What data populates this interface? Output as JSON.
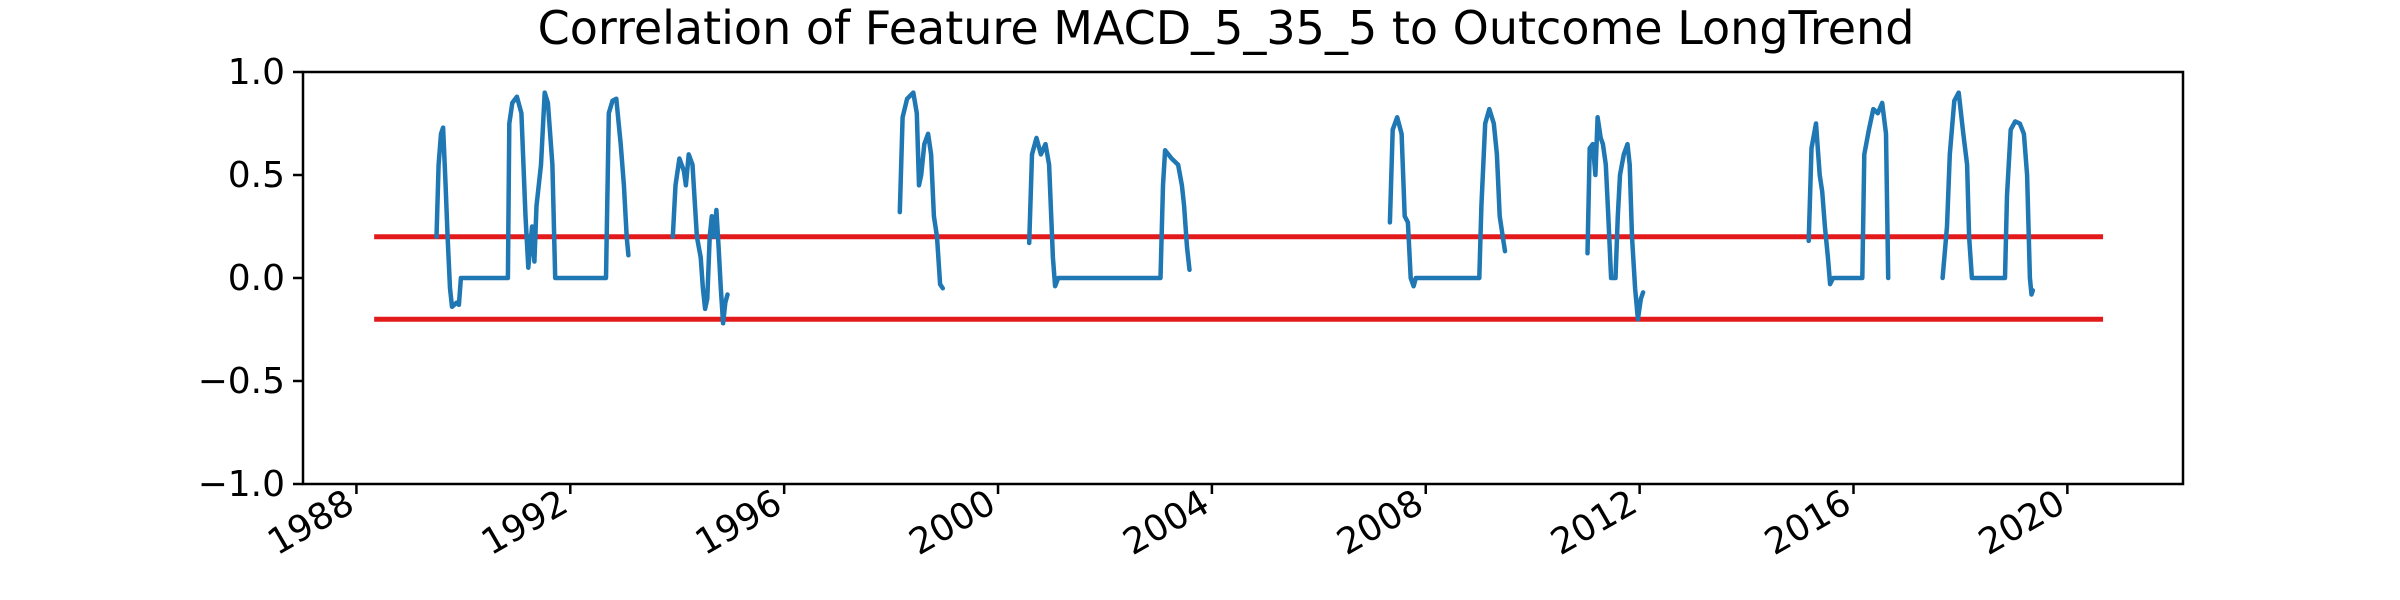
{
  "chart_data": {
    "type": "line",
    "title": "Correlation of Feature MACD_5_35_5 to Outcome LongTrend",
    "xlabel": "",
    "ylabel": "",
    "ylim": [
      -1.0,
      1.0
    ],
    "xlim": [
      "1987-01-01",
      "2022-03-01"
    ],
    "grid": false,
    "colors": {
      "series": "#1f77b4",
      "threshold": "#e31a1c"
    },
    "y_ticks": [
      {
        "value": 1.0,
        "label": "1.0"
      },
      {
        "value": 0.5,
        "label": "0.5"
      },
      {
        "value": 0.0,
        "label": "0.0"
      },
      {
        "value": -0.5,
        "label": "−0.5"
      },
      {
        "value": -1.0,
        "label": "−1.0"
      }
    ],
    "x_ticks": [
      {
        "value": "1988-01-01",
        "label": "1988"
      },
      {
        "value": "1992-01-01",
        "label": "1992"
      },
      {
        "value": "1996-01-01",
        "label": "1996"
      },
      {
        "value": "2000-01-01",
        "label": "2000"
      },
      {
        "value": "2004-01-01",
        "label": "2004"
      },
      {
        "value": "2008-01-01",
        "label": "2008"
      },
      {
        "value": "2012-01-01",
        "label": "2012"
      },
      {
        "value": "2016-01-01",
        "label": "2016"
      },
      {
        "value": "2020-01-01",
        "label": "2020"
      }
    ],
    "threshold_lines": [
      {
        "y": 0.2,
        "x": [
          "1988-05-01",
          "2020-09-01"
        ]
      },
      {
        "y": -0.2,
        "x": [
          "1988-05-01",
          "2020-09-01"
        ]
      }
    ],
    "series": [
      {
        "segments": [
          [
            [
              "1989-07-01",
              0.2
            ],
            [
              "1989-07-15",
              0.55
            ],
            [
              "1989-08-01",
              0.7
            ],
            [
              "1989-08-15",
              0.73
            ],
            [
              "1989-09-01",
              0.45
            ],
            [
              "1989-09-15",
              0.2
            ],
            [
              "1989-10-01",
              -0.05
            ],
            [
              "1989-10-15",
              -0.14
            ],
            [
              "1989-11-15",
              -0.12
            ],
            [
              "1989-12-01",
              -0.13
            ],
            [
              "1989-12-15",
              0.0
            ],
            [
              "1990-11-01",
              0.0
            ],
            [
              "1990-11-10",
              0.75
            ],
            [
              "1990-12-01",
              0.85
            ],
            [
              "1991-01-01",
              0.88
            ],
            [
              "1991-02-01",
              0.8
            ],
            [
              "1991-03-01",
              0.3
            ],
            [
              "1991-03-20",
              0.05
            ],
            [
              "1991-04-15",
              0.25
            ],
            [
              "1991-05-01",
              0.08
            ],
            [
              "1991-05-15",
              0.35
            ],
            [
              "1991-06-15",
              0.55
            ],
            [
              "1991-07-10",
              0.9
            ],
            [
              "1991-08-01",
              0.85
            ],
            [
              "1991-09-01",
              0.55
            ],
            [
              "1991-09-20",
              0.0
            ],
            [
              "1992-09-01",
              0.0
            ],
            [
              "1992-09-20",
              0.8
            ],
            [
              "1992-10-15",
              0.86
            ],
            [
              "1992-11-10",
              0.87
            ],
            [
              "1992-12-10",
              0.65
            ],
            [
              "1993-01-01",
              0.45
            ],
            [
              "1993-01-20",
              0.2
            ],
            [
              "1993-02-01",
              0.11
            ]
          ],
          [
            [
              "1993-12-01",
              0.2
            ],
            [
              "1993-12-20",
              0.45
            ],
            [
              "1994-01-15",
              0.58
            ],
            [
              "1994-02-15",
              0.52
            ],
            [
              "1994-03-01",
              0.45
            ],
            [
              "1994-03-20",
              0.6
            ],
            [
              "1994-04-15",
              0.55
            ],
            [
              "1994-05-15",
              0.2
            ],
            [
              "1994-06-10",
              0.1
            ],
            [
              "1994-06-25",
              -0.05
            ],
            [
              "1994-07-10",
              -0.15
            ],
            [
              "1994-07-25",
              -0.1
            ],
            [
              "1994-08-10",
              0.2
            ],
            [
              "1994-08-25",
              0.3
            ],
            [
              "1994-09-10",
              0.2
            ],
            [
              "1994-09-25",
              0.33
            ],
            [
              "1994-10-10",
              0.15
            ],
            [
              "1994-10-25",
              -0.05
            ],
            [
              "1994-11-10",
              -0.22
            ],
            [
              "1994-11-25",
              -0.12
            ],
            [
              "1994-12-10",
              -0.08
            ]
          ],
          [
            [
              "1998-03-01",
              0.32
            ],
            [
              "1998-03-20",
              0.78
            ],
            [
              "1998-04-20",
              0.87
            ],
            [
              "1998-06-01",
              0.9
            ],
            [
              "1998-06-25",
              0.8
            ],
            [
              "1998-07-10",
              0.45
            ],
            [
              "1998-07-25",
              0.5
            ],
            [
              "1998-08-15",
              0.65
            ],
            [
              "1998-09-10",
              0.7
            ],
            [
              "1998-10-01",
              0.6
            ],
            [
              "1998-10-20",
              0.3
            ],
            [
              "1998-11-10",
              0.2
            ],
            [
              "1998-12-01",
              -0.03
            ],
            [
              "1998-12-20",
              -0.05
            ]
          ],
          [
            [
              "2000-08-01",
              0.17
            ],
            [
              "2000-08-20",
              0.6
            ],
            [
              "2000-09-20",
              0.68
            ],
            [
              "2000-10-20",
              0.6
            ],
            [
              "2000-11-20",
              0.65
            ],
            [
              "2000-12-15",
              0.55
            ],
            [
              "2001-01-10",
              0.1
            ],
            [
              "2001-01-25",
              -0.04
            ],
            [
              "2001-02-15",
              0.0
            ],
            [
              "2003-01-15",
              0.0
            ],
            [
              "2003-02-01",
              0.45
            ],
            [
              "2003-02-15",
              0.62
            ],
            [
              "2003-04-01",
              0.58
            ],
            [
              "2003-05-15",
              0.55
            ],
            [
              "2003-06-10",
              0.45
            ],
            [
              "2003-06-25",
              0.35
            ],
            [
              "2003-07-15",
              0.15
            ],
            [
              "2003-08-01",
              0.04
            ]
          ],
          [
            [
              "2007-05-01",
              0.27
            ],
            [
              "2007-05-20",
              0.72
            ],
            [
              "2007-06-20",
              0.78
            ],
            [
              "2007-07-20",
              0.7
            ],
            [
              "2007-08-10",
              0.3
            ],
            [
              "2007-09-01",
              0.27
            ],
            [
              "2007-09-20",
              0.0
            ],
            [
              "2007-10-10",
              -0.04
            ],
            [
              "2007-10-25",
              0.0
            ],
            [
              "2009-01-01",
              0.0
            ],
            [
              "2009-01-15",
              0.35
            ],
            [
              "2009-02-10",
              0.75
            ],
            [
              "2009-03-10",
              0.82
            ],
            [
              "2009-04-10",
              0.75
            ],
            [
              "2009-05-01",
              0.6
            ],
            [
              "2009-05-20",
              0.3
            ],
            [
              "2009-06-10",
              0.2
            ],
            [
              "2009-06-25",
              0.13
            ]
          ],
          [
            [
              "2011-01-10",
              0.12
            ],
            [
              "2011-01-25",
              0.63
            ],
            [
              "2011-02-15",
              0.65
            ],
            [
              "2011-03-05",
              0.5
            ],
            [
              "2011-03-20",
              0.78
            ],
            [
              "2011-04-10",
              0.68
            ],
            [
              "2011-04-25",
              0.65
            ],
            [
              "2011-05-15",
              0.55
            ],
            [
              "2011-06-01",
              0.3
            ],
            [
              "2011-06-20",
              0.0
            ],
            [
              "2011-07-20",
              0.0
            ],
            [
              "2011-08-05",
              0.3
            ],
            [
              "2011-08-20",
              0.5
            ],
            [
              "2011-09-15",
              0.6
            ],
            [
              "2011-10-10",
              0.65
            ],
            [
              "2011-10-25",
              0.55
            ],
            [
              "2011-11-10",
              0.2
            ],
            [
              "2011-12-01",
              -0.05
            ],
            [
              "2011-12-20",
              -0.2
            ],
            [
              "2012-01-10",
              -0.1
            ],
            [
              "2012-01-25",
              -0.07
            ]
          ],
          [
            [
              "2015-03-01",
              0.18
            ],
            [
              "2015-03-20",
              0.63
            ],
            [
              "2015-04-20",
              0.75
            ],
            [
              "2015-05-15",
              0.5
            ],
            [
              "2015-06-01",
              0.42
            ],
            [
              "2015-06-20",
              0.25
            ],
            [
              "2015-07-10",
              0.1
            ],
            [
              "2015-07-25",
              -0.03
            ],
            [
              "2015-08-15",
              0.0
            ],
            [
              "2016-03-01",
              0.0
            ],
            [
              "2016-03-15",
              0.6
            ],
            [
              "2016-04-15",
              0.72
            ],
            [
              "2016-05-15",
              0.82
            ],
            [
              "2016-06-15",
              0.8
            ],
            [
              "2016-07-15",
              0.85
            ],
            [
              "2016-08-10",
              0.7
            ],
            [
              "2016-08-25",
              0.0
            ]
          ],
          [
            [
              "2017-09-01",
              0.0
            ],
            [
              "2017-10-01",
              0.25
            ],
            [
              "2017-10-20",
              0.6
            ],
            [
              "2017-11-20",
              0.86
            ],
            [
              "2017-12-20",
              0.9
            ],
            [
              "2018-01-20",
              0.7
            ],
            [
              "2018-02-15",
              0.55
            ],
            [
              "2018-03-01",
              0.2
            ],
            [
              "2018-03-20",
              0.0
            ],
            [
              "2018-11-01",
              0.0
            ],
            [
              "2018-11-15",
              0.4
            ],
            [
              "2018-12-10",
              0.72
            ],
            [
              "2019-01-10",
              0.76
            ],
            [
              "2019-02-10",
              0.75
            ],
            [
              "2019-03-10",
              0.7
            ],
            [
              "2019-04-01",
              0.5
            ],
            [
              "2019-04-20",
              0.0
            ],
            [
              "2019-05-01",
              -0.08
            ],
            [
              "2019-05-10",
              -0.06
            ]
          ]
        ]
      }
    ]
  }
}
